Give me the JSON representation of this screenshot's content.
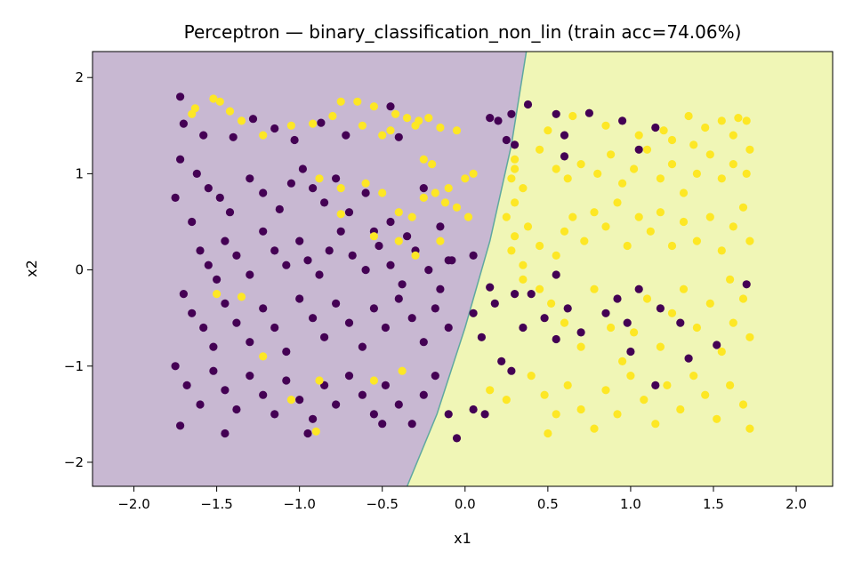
{
  "chart_data": {
    "type": "scatter",
    "title": "Perceptron — binary_classification_non_lin  (train acc=74.06%)",
    "xlabel": "x1",
    "ylabel": "x2",
    "xlim": [
      -2.25,
      2.22
    ],
    "ylim": [
      -2.25,
      2.27
    ],
    "xticks": [
      -2.0,
      -1.5,
      -1.0,
      -0.5,
      0.0,
      0.5,
      1.0,
      1.5,
      2.0
    ],
    "yticks": [
      -2,
      -1,
      0,
      1,
      2
    ],
    "xtick_labels": [
      "−2.0",
      "−1.5",
      "−1.0",
      "−0.5",
      "0.0",
      "0.5",
      "1.0",
      "1.5",
      "2.0"
    ],
    "ytick_labels": [
      "−2",
      "−1",
      "0",
      "1",
      "2"
    ],
    "grid": false,
    "decision_boundary": {
      "points": [
        [
          -0.35,
          -2.25
        ],
        [
          -0.17,
          -1.5
        ],
        [
          0.0,
          -0.6
        ],
        [
          0.15,
          0.3
        ],
        [
          0.28,
          1.3
        ],
        [
          0.37,
          2.27
        ]
      ],
      "left_region_color": "#c8b8d2",
      "right_region_color": "#f0f6b6",
      "line_color": "#5fa8a0"
    },
    "series": [
      {
        "class": 0,
        "color": "#440154",
        "points": [
          [
            -1.72,
            1.8
          ],
          [
            -1.7,
            1.52
          ],
          [
            -1.58,
            1.4
          ],
          [
            -1.4,
            1.38
          ],
          [
            -1.28,
            1.57
          ],
          [
            -1.15,
            1.47
          ],
          [
            -1.03,
            1.35
          ],
          [
            -0.87,
            1.53
          ],
          [
            -0.72,
            1.4
          ],
          [
            -0.45,
            1.7
          ],
          [
            -0.4,
            1.38
          ],
          [
            0.15,
            1.58
          ],
          [
            0.2,
            1.55
          ],
          [
            0.28,
            1.62
          ],
          [
            0.38,
            1.72
          ],
          [
            0.55,
            1.62
          ],
          [
            0.6,
            1.4
          ],
          [
            0.75,
            1.63
          ],
          [
            0.95,
            1.55
          ],
          [
            1.15,
            1.48
          ],
          [
            0.6,
            1.18
          ],
          [
            -1.72,
            1.15
          ],
          [
            -1.62,
            1.0
          ],
          [
            -1.55,
            0.85
          ],
          [
            -1.48,
            0.75
          ],
          [
            -1.42,
            0.6
          ],
          [
            -1.3,
            0.95
          ],
          [
            -1.22,
            0.8
          ],
          [
            -1.12,
            0.63
          ],
          [
            -1.05,
            0.9
          ],
          [
            -0.98,
            1.05
          ],
          [
            -0.92,
            0.85
          ],
          [
            -0.85,
            0.7
          ],
          [
            -0.78,
            0.95
          ],
          [
            -0.7,
            0.6
          ],
          [
            -0.6,
            0.8
          ],
          [
            -0.55,
            0.4
          ],
          [
            -0.45,
            0.5
          ],
          [
            -0.35,
            0.35
          ],
          [
            -0.25,
            0.85
          ],
          [
            -0.15,
            0.45
          ],
          [
            -0.1,
            0.1
          ],
          [
            0.05,
            0.15
          ],
          [
            0.25,
            1.35
          ],
          [
            0.3,
            1.3
          ],
          [
            -1.75,
            0.75
          ],
          [
            -1.65,
            0.5
          ],
          [
            -1.6,
            0.2
          ],
          [
            -1.55,
            0.05
          ],
          [
            -1.5,
            -0.1
          ],
          [
            -1.45,
            0.3
          ],
          [
            -1.38,
            0.15
          ],
          [
            -1.3,
            -0.05
          ],
          [
            -1.22,
            0.4
          ],
          [
            -1.15,
            0.2
          ],
          [
            -1.08,
            0.05
          ],
          [
            -1.0,
            0.3
          ],
          [
            -0.95,
            0.1
          ],
          [
            -0.88,
            -0.05
          ],
          [
            -0.82,
            0.2
          ],
          [
            -0.75,
            0.4
          ],
          [
            -0.68,
            0.15
          ],
          [
            -0.6,
            0.0
          ],
          [
            -0.52,
            0.25
          ],
          [
            -0.45,
            0.05
          ],
          [
            -0.38,
            -0.15
          ],
          [
            -0.3,
            0.2
          ],
          [
            -0.22,
            0.0
          ],
          [
            -0.15,
            -0.2
          ],
          [
            -0.08,
            0.1
          ],
          [
            -1.7,
            -0.25
          ],
          [
            -1.65,
            -0.45
          ],
          [
            -1.58,
            -0.6
          ],
          [
            -1.52,
            -0.8
          ],
          [
            -1.45,
            -0.35
          ],
          [
            -1.38,
            -0.55
          ],
          [
            -1.3,
            -0.75
          ],
          [
            -1.22,
            -0.4
          ],
          [
            -1.15,
            -0.6
          ],
          [
            -1.08,
            -0.85
          ],
          [
            -1.0,
            -0.3
          ],
          [
            -0.92,
            -0.5
          ],
          [
            -0.85,
            -0.7
          ],
          [
            -0.78,
            -0.35
          ],
          [
            -0.7,
            -0.55
          ],
          [
            -0.62,
            -0.8
          ],
          [
            -0.55,
            -0.4
          ],
          [
            -0.48,
            -0.6
          ],
          [
            -0.4,
            -0.3
          ],
          [
            -0.32,
            -0.5
          ],
          [
            -0.25,
            -0.75
          ],
          [
            -0.18,
            -0.4
          ],
          [
            -0.1,
            -0.6
          ],
          [
            -1.75,
            -1.0
          ],
          [
            -1.68,
            -1.2
          ],
          [
            -1.6,
            -1.4
          ],
          [
            -1.52,
            -1.05
          ],
          [
            -1.45,
            -1.25
          ],
          [
            -1.38,
            -1.45
          ],
          [
            -1.3,
            -1.1
          ],
          [
            -1.22,
            -1.3
          ],
          [
            -1.15,
            -1.5
          ],
          [
            -1.08,
            -1.15
          ],
          [
            -1.0,
            -1.35
          ],
          [
            -0.92,
            -1.55
          ],
          [
            -0.85,
            -1.2
          ],
          [
            -0.78,
            -1.4
          ],
          [
            -0.7,
            -1.1
          ],
          [
            -0.62,
            -1.3
          ],
          [
            -0.55,
            -1.5
          ],
          [
            -0.48,
            -1.2
          ],
          [
            -0.4,
            -1.4
          ],
          [
            -0.32,
            -1.6
          ],
          [
            -0.25,
            -1.3
          ],
          [
            -0.18,
            -1.1
          ],
          [
            -0.1,
            -1.5
          ],
          [
            -0.05,
            -1.75
          ],
          [
            -1.72,
            -1.62
          ],
          [
            -1.45,
            -1.7
          ],
          [
            -0.95,
            -1.7
          ],
          [
            -0.5,
            -1.6
          ],
          [
            0.05,
            -0.45
          ],
          [
            0.1,
            -0.7
          ],
          [
            0.18,
            -0.35
          ],
          [
            0.22,
            -0.95
          ],
          [
            0.28,
            -1.05
          ],
          [
            0.35,
            -0.6
          ],
          [
            0.4,
            -0.25
          ],
          [
            0.48,
            -0.5
          ],
          [
            0.55,
            -0.72
          ],
          [
            0.62,
            -0.4
          ],
          [
            0.7,
            -0.65
          ],
          [
            0.85,
            -0.45
          ],
          [
            0.92,
            -0.3
          ],
          [
            0.98,
            -0.55
          ],
          [
            1.05,
            -0.2
          ],
          [
            1.18,
            -0.4
          ],
          [
            1.35,
            -0.92
          ],
          [
            1.52,
            -0.78
          ],
          [
            1.7,
            -0.15
          ],
          [
            1.3,
            -0.55
          ],
          [
            0.3,
            -0.25
          ],
          [
            0.15,
            -0.18
          ],
          [
            0.05,
            -1.45
          ],
          [
            0.12,
            -1.5
          ],
          [
            0.55,
            -0.05
          ],
          [
            1.0,
            -0.85
          ],
          [
            1.15,
            -1.2
          ],
          [
            1.05,
            1.25
          ]
        ]
      },
      {
        "class": 1,
        "color": "#fde725",
        "points": [
          [
            -1.65,
            1.62
          ],
          [
            -1.63,
            1.68
          ],
          [
            -1.52,
            1.78
          ],
          [
            -1.48,
            1.75
          ],
          [
            -1.42,
            1.65
          ],
          [
            -1.35,
            1.55
          ],
          [
            -1.22,
            1.4
          ],
          [
            -1.05,
            1.5
          ],
          [
            -0.92,
            1.52
          ],
          [
            -0.8,
            1.6
          ],
          [
            -0.75,
            1.75
          ],
          [
            -0.62,
            1.5
          ],
          [
            -0.55,
            1.7
          ],
          [
            -0.42,
            1.62
          ],
          [
            -0.35,
            1.58
          ],
          [
            -0.28,
            1.55
          ],
          [
            -0.22,
            1.58
          ],
          [
            -0.15,
            1.48
          ],
          [
            -0.05,
            1.45
          ],
          [
            -0.65,
            1.75
          ],
          [
            -0.5,
            1.4
          ],
          [
            -0.3,
            1.5
          ],
          [
            -0.25,
            1.15
          ],
          [
            -0.2,
            1.1
          ],
          [
            -0.1,
            0.85
          ],
          [
            0.0,
            0.95
          ],
          [
            0.05,
            1.0
          ],
          [
            -0.45,
            1.45
          ],
          [
            -0.88,
            0.95
          ],
          [
            -0.75,
            0.85
          ],
          [
            -0.6,
            0.9
          ],
          [
            -0.5,
            0.8
          ],
          [
            -0.4,
            0.6
          ],
          [
            -0.32,
            0.55
          ],
          [
            -0.25,
            0.75
          ],
          [
            -0.18,
            0.8
          ],
          [
            -0.12,
            0.7
          ],
          [
            -0.05,
            0.65
          ],
          [
            0.02,
            0.55
          ],
          [
            -0.75,
            0.58
          ],
          [
            -0.55,
            0.35
          ],
          [
            -0.4,
            0.3
          ],
          [
            -0.3,
            0.15
          ],
          [
            -0.15,
            0.3
          ],
          [
            0.3,
            1.15
          ],
          [
            0.3,
            1.05
          ],
          [
            0.28,
            0.95
          ],
          [
            0.35,
            0.85
          ],
          [
            0.3,
            0.7
          ],
          [
            0.25,
            0.55
          ],
          [
            0.38,
            0.45
          ],
          [
            0.3,
            0.35
          ],
          [
            0.28,
            0.2
          ],
          [
            0.35,
            0.05
          ],
          [
            0.45,
            0.25
          ],
          [
            0.55,
            0.15
          ],
          [
            0.6,
            0.4
          ],
          [
            0.65,
            0.55
          ],
          [
            0.72,
            0.3
          ],
          [
            0.78,
            0.6
          ],
          [
            0.85,
            0.45
          ],
          [
            0.92,
            0.7
          ],
          [
            0.98,
            0.25
          ],
          [
            1.05,
            0.55
          ],
          [
            1.12,
            0.4
          ],
          [
            1.18,
            0.6
          ],
          [
            1.25,
            0.25
          ],
          [
            1.32,
            0.5
          ],
          [
            1.4,
            0.3
          ],
          [
            1.48,
            0.55
          ],
          [
            1.55,
            0.2
          ],
          [
            1.62,
            0.45
          ],
          [
            1.68,
            0.65
          ],
          [
            1.72,
            0.3
          ],
          [
            0.45,
            1.25
          ],
          [
            0.55,
            1.05
          ],
          [
            0.62,
            0.95
          ],
          [
            0.7,
            1.1
          ],
          [
            0.8,
            1.0
          ],
          [
            0.88,
            1.2
          ],
          [
            0.95,
            0.9
          ],
          [
            1.02,
            1.05
          ],
          [
            1.1,
            1.25
          ],
          [
            1.18,
            0.95
          ],
          [
            1.25,
            1.1
          ],
          [
            1.32,
            0.8
          ],
          [
            1.4,
            1.0
          ],
          [
            1.48,
            1.2
          ],
          [
            1.55,
            0.95
          ],
          [
            1.62,
            1.1
          ],
          [
            1.7,
            1.0
          ],
          [
            1.72,
            1.25
          ],
          [
            0.5,
            1.45
          ],
          [
            0.65,
            1.6
          ],
          [
            0.85,
            1.5
          ],
          [
            1.05,
            1.4
          ],
          [
            1.2,
            1.45
          ],
          [
            1.35,
            1.6
          ],
          [
            1.45,
            1.48
          ],
          [
            1.55,
            1.55
          ],
          [
            1.65,
            1.58
          ],
          [
            1.7,
            1.55
          ],
          [
            1.62,
            1.4
          ],
          [
            1.38,
            1.3
          ],
          [
            1.25,
            1.35
          ],
          [
            0.35,
            -0.1
          ],
          [
            0.45,
            -0.2
          ],
          [
            0.52,
            -0.35
          ],
          [
            0.6,
            -0.55
          ],
          [
            0.7,
            -0.8
          ],
          [
            0.78,
            -0.2
          ],
          [
            0.88,
            -0.6
          ],
          [
            0.95,
            -0.95
          ],
          [
            1.02,
            -0.65
          ],
          [
            1.1,
            -0.3
          ],
          [
            1.18,
            -0.8
          ],
          [
            1.25,
            -0.45
          ],
          [
            1.32,
            -0.2
          ],
          [
            1.4,
            -0.6
          ],
          [
            1.48,
            -0.35
          ],
          [
            1.55,
            -0.85
          ],
          [
            1.62,
            -0.55
          ],
          [
            1.68,
            -0.3
          ],
          [
            1.72,
            -0.7
          ],
          [
            1.6,
            -0.1
          ],
          [
            0.4,
            -1.1
          ],
          [
            0.48,
            -1.3
          ],
          [
            0.55,
            -1.5
          ],
          [
            0.62,
            -1.2
          ],
          [
            0.7,
            -1.45
          ],
          [
            0.78,
            -1.65
          ],
          [
            0.85,
            -1.25
          ],
          [
            0.92,
            -1.5
          ],
          [
            1.0,
            -1.1
          ],
          [
            1.08,
            -1.35
          ],
          [
            1.15,
            -1.6
          ],
          [
            1.22,
            -1.2
          ],
          [
            1.3,
            -1.45
          ],
          [
            1.38,
            -1.1
          ],
          [
            1.45,
            -1.3
          ],
          [
            1.52,
            -1.55
          ],
          [
            1.6,
            -1.2
          ],
          [
            1.68,
            -1.4
          ],
          [
            1.72,
            -1.65
          ],
          [
            0.25,
            -1.35
          ],
          [
            0.15,
            -1.25
          ],
          [
            0.5,
            -1.7
          ],
          [
            -0.38,
            -1.05
          ],
          [
            -0.55,
            -1.15
          ],
          [
            -0.88,
            -1.15
          ],
          [
            -0.9,
            -1.68
          ],
          [
            -1.05,
            -1.35
          ],
          [
            -1.22,
            -0.9
          ],
          [
            -1.5,
            -0.25
          ],
          [
            -1.35,
            -0.28
          ]
        ]
      }
    ]
  }
}
